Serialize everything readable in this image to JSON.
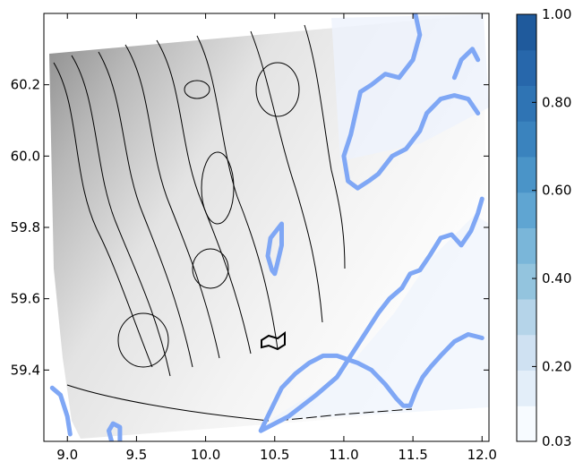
{
  "chart_data": {
    "type": "heatmap",
    "title": "",
    "xlabel": "",
    "ylabel": "",
    "xlim": [
      8.83,
      12.05
    ],
    "ylim": [
      59.2,
      60.4
    ],
    "x_ticks": [
      {
        "value": 9.0,
        "label": "9.0"
      },
      {
        "value": 9.5,
        "label": "9.5"
      },
      {
        "value": 10.0,
        "label": "10.0"
      },
      {
        "value": 10.5,
        "label": "10.5"
      },
      {
        "value": 11.0,
        "label": "11.0"
      },
      {
        "value": 11.5,
        "label": "11.5"
      },
      {
        "value": 12.0,
        "label": "12.0"
      }
    ],
    "y_ticks": [
      {
        "value": 59.4,
        "label": "59.4"
      },
      {
        "value": 59.6,
        "label": "59.6"
      },
      {
        "value": 59.8,
        "label": "59.8"
      },
      {
        "value": 60.0,
        "label": "60.0"
      },
      {
        "value": 60.2,
        "label": "60.2"
      }
    ],
    "colorbar": {
      "min": 0.03,
      "max": 1.0,
      "levels": 12,
      "ticks": [
        {
          "value": 0.03,
          "label": "0.03"
        },
        {
          "value": 0.2,
          "label": "0.20"
        },
        {
          "value": 0.4,
          "label": "0.40"
        },
        {
          "value": 0.6,
          "label": "0.60"
        },
        {
          "value": 0.8,
          "label": "0.80"
        },
        {
          "value": 1.0,
          "label": "1.00"
        }
      ],
      "colors": [
        "#f7fbff",
        "#e3eef9",
        "#cfe1f2",
        "#b5d4e9",
        "#93c4de",
        "#7ab6d9",
        "#5fa5d2",
        "#4a94c8",
        "#3a83be",
        "#2f74b4",
        "#2767ab",
        "#1f5a9c"
      ]
    },
    "overlay_lines": [
      {
        "color": "#7fa7f5",
        "points": [
          [
            11.5,
            60.43
          ],
          [
            11.55,
            60.34
          ],
          [
            11.5,
            60.27
          ],
          [
            11.4,
            60.22
          ],
          [
            11.3,
            60.23
          ],
          [
            11.2,
            60.2
          ],
          [
            11.12,
            60.18
          ],
          [
            11.05,
            60.06
          ],
          [
            11.0,
            60.0
          ],
          [
            11.03,
            59.93
          ],
          [
            11.1,
            59.91
          ],
          [
            11.18,
            59.93
          ],
          [
            11.25,
            59.95
          ],
          [
            11.35,
            60.0
          ],
          [
            11.45,
            60.02
          ],
          [
            11.55,
            60.07
          ],
          [
            11.6,
            60.12
          ],
          [
            11.7,
            60.16
          ],
          [
            11.8,
            60.17
          ],
          [
            11.9,
            60.16
          ],
          [
            11.97,
            60.12
          ]
        ]
      },
      {
        "color": "#7fa7f5",
        "points": [
          [
            11.8,
            60.22
          ],
          [
            11.85,
            60.27
          ],
          [
            11.93,
            60.3
          ],
          [
            11.97,
            60.27
          ]
        ]
      },
      {
        "color": "#7fa7f5",
        "points": [
          [
            10.55,
            59.81
          ],
          [
            10.47,
            59.77
          ],
          [
            10.45,
            59.72
          ],
          [
            10.48,
            59.68
          ],
          [
            10.5,
            59.67
          ],
          [
            10.52,
            59.7
          ],
          [
            10.55,
            59.75
          ],
          [
            10.55,
            59.81
          ]
        ]
      },
      {
        "color": "#7fa7f5",
        "points": [
          [
            10.4,
            59.23
          ],
          [
            10.45,
            59.27
          ],
          [
            10.55,
            59.35
          ],
          [
            10.65,
            59.39
          ],
          [
            10.75,
            59.42
          ],
          [
            10.85,
            59.44
          ],
          [
            10.95,
            59.44
          ],
          [
            11.1,
            59.42
          ],
          [
            11.2,
            59.4
          ],
          [
            11.3,
            59.36
          ],
          [
            11.38,
            59.32
          ],
          [
            11.43,
            59.3
          ],
          [
            11.48,
            59.3
          ],
          [
            11.52,
            59.34
          ],
          [
            11.57,
            59.38
          ],
          [
            11.63,
            59.41
          ],
          [
            11.7,
            59.44
          ],
          [
            11.8,
            59.48
          ],
          [
            11.9,
            59.5
          ],
          [
            12.0,
            59.49
          ]
        ]
      },
      {
        "color": "#7fa7f5",
        "points": [
          [
            10.4,
            59.23
          ],
          [
            10.6,
            59.27
          ],
          [
            10.8,
            59.33
          ],
          [
            10.95,
            59.38
          ],
          [
            11.05,
            59.44
          ],
          [
            11.15,
            59.5
          ],
          [
            11.25,
            59.56
          ],
          [
            11.33,
            59.6
          ],
          [
            11.42,
            59.63
          ],
          [
            11.48,
            59.67
          ],
          [
            11.55,
            59.68
          ],
          [
            11.62,
            59.72
          ],
          [
            11.7,
            59.77
          ],
          [
            11.78,
            59.78
          ],
          [
            11.85,
            59.75
          ],
          [
            11.92,
            59.79
          ],
          [
            11.97,
            59.84
          ],
          [
            12.0,
            59.88
          ]
        ]
      },
      {
        "color": "#7fa7f5",
        "points": [
          [
            9.02,
            59.22
          ],
          [
            9.0,
            59.27
          ],
          [
            8.95,
            59.33
          ],
          [
            8.89,
            59.35
          ]
        ]
      },
      {
        "color": "#7fa7f5",
        "points": [
          [
            9.32,
            59.2
          ],
          [
            9.3,
            59.23
          ],
          [
            9.33,
            59.25
          ],
          [
            9.38,
            59.24
          ],
          [
            9.38,
            59.2
          ]
        ]
      }
    ]
  }
}
